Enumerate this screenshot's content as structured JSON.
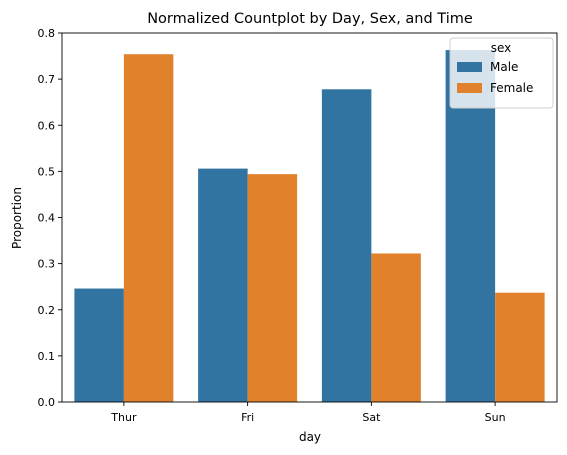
{
  "chart_data": {
    "type": "bar",
    "title": "Normalized Countplot by Day, Sex, and Time",
    "xlabel": "day",
    "ylabel": "Proportion",
    "categories": [
      "Thur",
      "Fri",
      "Sat",
      "Sun"
    ],
    "ylim": [
      0,
      0.8
    ],
    "yticks": [
      0.0,
      0.1,
      0.2,
      0.3,
      0.4,
      0.5,
      0.6,
      0.7,
      0.8
    ],
    "ytick_labels": [
      "0.0",
      "0.1",
      "0.2",
      "0.3",
      "0.4",
      "0.5",
      "0.6",
      "0.7",
      "0.8"
    ],
    "grid": false,
    "legend": {
      "title": "sex",
      "placement": "top-right"
    },
    "series": [
      {
        "name": "Male",
        "color": "#3274a1",
        "values": [
          0.246,
          0.506,
          0.678,
          0.763
        ]
      },
      {
        "name": "Female",
        "color": "#e1812c",
        "values": [
          0.754,
          0.494,
          0.322,
          0.237
        ]
      }
    ]
  }
}
